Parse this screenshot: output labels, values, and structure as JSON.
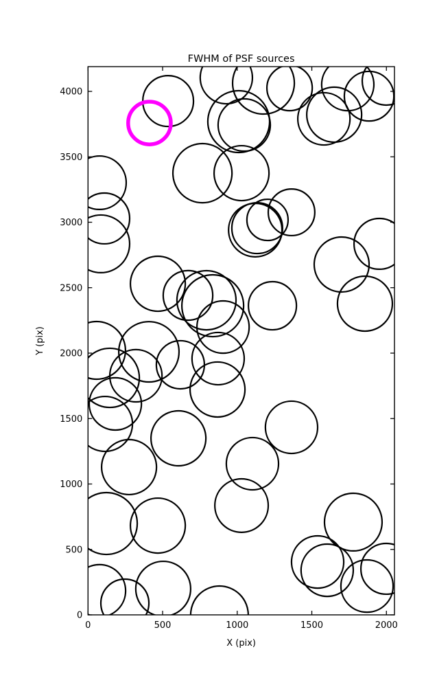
{
  "chart_data": {
    "type": "scatter",
    "title": "FWHM of PSF sources",
    "xlabel": "X (pix)",
    "ylabel": "Y (pix)",
    "xlim": [
      0,
      2054
    ],
    "ylim": [
      0,
      4189
    ],
    "xticks": [
      0,
      500,
      1000,
      1500,
      2000
    ],
    "yticks": [
      0,
      500,
      1000,
      1500,
      2000,
      2500,
      3000,
      3500,
      4000
    ],
    "grid": false,
    "legend": "none",
    "marker": "open-circle",
    "circle_color": "#000000",
    "highlight_color": "#FF00FF",
    "background_color": "#FFFFFF",
    "highlighted_circle": {
      "x": 412,
      "y": 3758,
      "r": 143
    },
    "circles": [
      {
        "x": 537,
        "y": 3926,
        "r": 170
      },
      {
        "x": 927,
        "y": 4105,
        "r": 175
      },
      {
        "x": 1176,
        "y": 4063,
        "r": 207
      },
      {
        "x": 1351,
        "y": 4026,
        "r": 152
      },
      {
        "x": 1741,
        "y": 4052,
        "r": 175
      },
      {
        "x": 1999,
        "y": 4079,
        "r": 161
      },
      {
        "x": 1884,
        "y": 3963,
        "r": 166
      },
      {
        "x": 1650,
        "y": 3822,
        "r": 184
      },
      {
        "x": 1581,
        "y": 3790,
        "r": 175
      },
      {
        "x": 1010,
        "y": 3769,
        "r": 207
      },
      {
        "x": 1047,
        "y": 3743,
        "r": 175
      },
      {
        "x": 77,
        "y": 3302,
        "r": 179
      },
      {
        "x": 767,
        "y": 3375,
        "r": 198
      },
      {
        "x": 1029,
        "y": 3375,
        "r": 184
      },
      {
        "x": 1364,
        "y": 3076,
        "r": 156
      },
      {
        "x": 109,
        "y": 3029,
        "r": 170
      },
      {
        "x": 86,
        "y": 2835,
        "r": 193
      },
      {
        "x": 1121,
        "y": 2940,
        "r": 179
      },
      {
        "x": 1134,
        "y": 2955,
        "r": 170
      },
      {
        "x": 1203,
        "y": 3018,
        "r": 138
      },
      {
        "x": 1953,
        "y": 2835,
        "r": 170
      },
      {
        "x": 1856,
        "y": 2378,
        "r": 184
      },
      {
        "x": 1700,
        "y": 2677,
        "r": 184
      },
      {
        "x": 468,
        "y": 2530,
        "r": 184
      },
      {
        "x": 836,
        "y": 2362,
        "r": 207
      },
      {
        "x": 794,
        "y": 2404,
        "r": 198
      },
      {
        "x": 905,
        "y": 2199,
        "r": 175
      },
      {
        "x": 1236,
        "y": 2362,
        "r": 161
      },
      {
        "x": 670,
        "y": 2441,
        "r": 166
      },
      {
        "x": 619,
        "y": 1911,
        "r": 161
      },
      {
        "x": 408,
        "y": 2010,
        "r": 202
      },
      {
        "x": 58,
        "y": 2021,
        "r": 193
      },
      {
        "x": 146,
        "y": 1811,
        "r": 198
      },
      {
        "x": 321,
        "y": 1827,
        "r": 175
      },
      {
        "x": 183,
        "y": 1612,
        "r": 175
      },
      {
        "x": 114,
        "y": 1459,
        "r": 184
      },
      {
        "x": 872,
        "y": 1958,
        "r": 175
      },
      {
        "x": 868,
        "y": 1722,
        "r": 184
      },
      {
        "x": 606,
        "y": 1349,
        "r": 184
      },
      {
        "x": 1102,
        "y": 1155,
        "r": 175
      },
      {
        "x": 1364,
        "y": 1433,
        "r": 175
      },
      {
        "x": 275,
        "y": 1129,
        "r": 184
      },
      {
        "x": 1029,
        "y": 835,
        "r": 179
      },
      {
        "x": 1778,
        "y": 709,
        "r": 193
      },
      {
        "x": 123,
        "y": 698,
        "r": 207
      },
      {
        "x": 468,
        "y": 682,
        "r": 184
      },
      {
        "x": 77,
        "y": 184,
        "r": 175
      },
      {
        "x": 247,
        "y": 89,
        "r": 161
      },
      {
        "x": 504,
        "y": 199,
        "r": 184
      },
      {
        "x": 881,
        "y": 0,
        "r": 193
      },
      {
        "x": 1539,
        "y": 404,
        "r": 175
      },
      {
        "x": 1603,
        "y": 341,
        "r": 175
      },
      {
        "x": 1870,
        "y": 220,
        "r": 175
      },
      {
        "x": 1999,
        "y": 352,
        "r": 170
      }
    ]
  }
}
